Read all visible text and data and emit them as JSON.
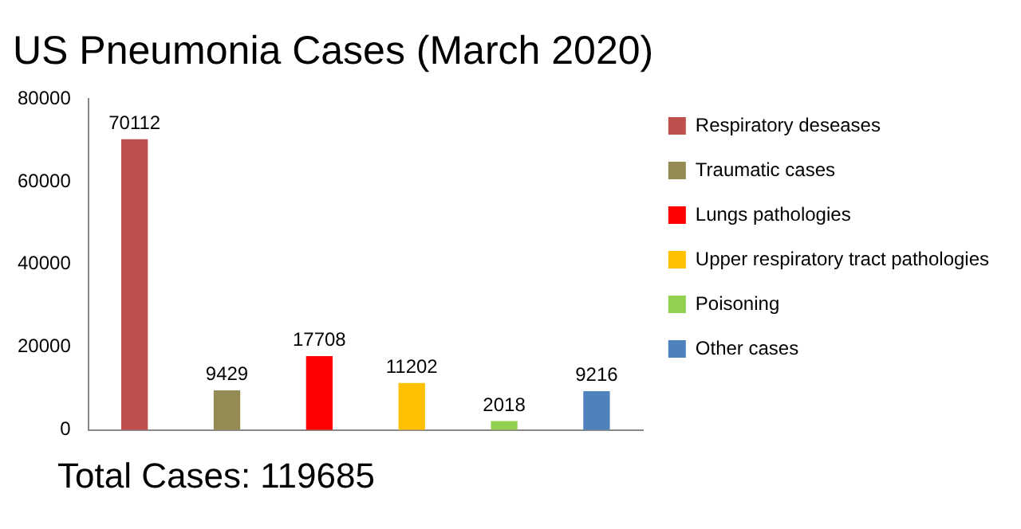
{
  "chart_data": {
    "type": "bar",
    "title": "US Pneumonia Cases (March 2020)",
    "categories": [
      null,
      null,
      null,
      null,
      null,
      null
    ],
    "series": [
      {
        "name": "Respiratory deseases",
        "color": "#c0504d",
        "values": [
          70112,
          null,
          null,
          null,
          null,
          null
        ]
      },
      {
        "name": "Traumatic cases",
        "color": "#948a54",
        "values": [
          null,
          9429,
          null,
          null,
          null,
          null
        ]
      },
      {
        "name": "Lungs pathologies",
        "color": "#ff0000",
        "values": [
          null,
          null,
          17708,
          null,
          null,
          null
        ]
      },
      {
        "name": "Upper respiratory tract pathologies",
        "color": "#ffc000",
        "values": [
          null,
          null,
          null,
          11202,
          null,
          null
        ]
      },
      {
        "name": "Poisoning",
        "color": "#92d050",
        "values": [
          null,
          null,
          null,
          null,
          2018,
          null
        ]
      },
      {
        "name": "Other cases",
        "color": "#4f81bd",
        "values": [
          null,
          null,
          null,
          null,
          null,
          9216
        ]
      }
    ],
    "ylim": [
      0,
      80000
    ],
    "yticks": [
      0,
      20000,
      40000,
      60000,
      80000
    ],
    "grid": false,
    "legend": "right",
    "tick_labels": "y",
    "data_labels": true,
    "annotations": [
      "Total Cases: 119685"
    ]
  }
}
